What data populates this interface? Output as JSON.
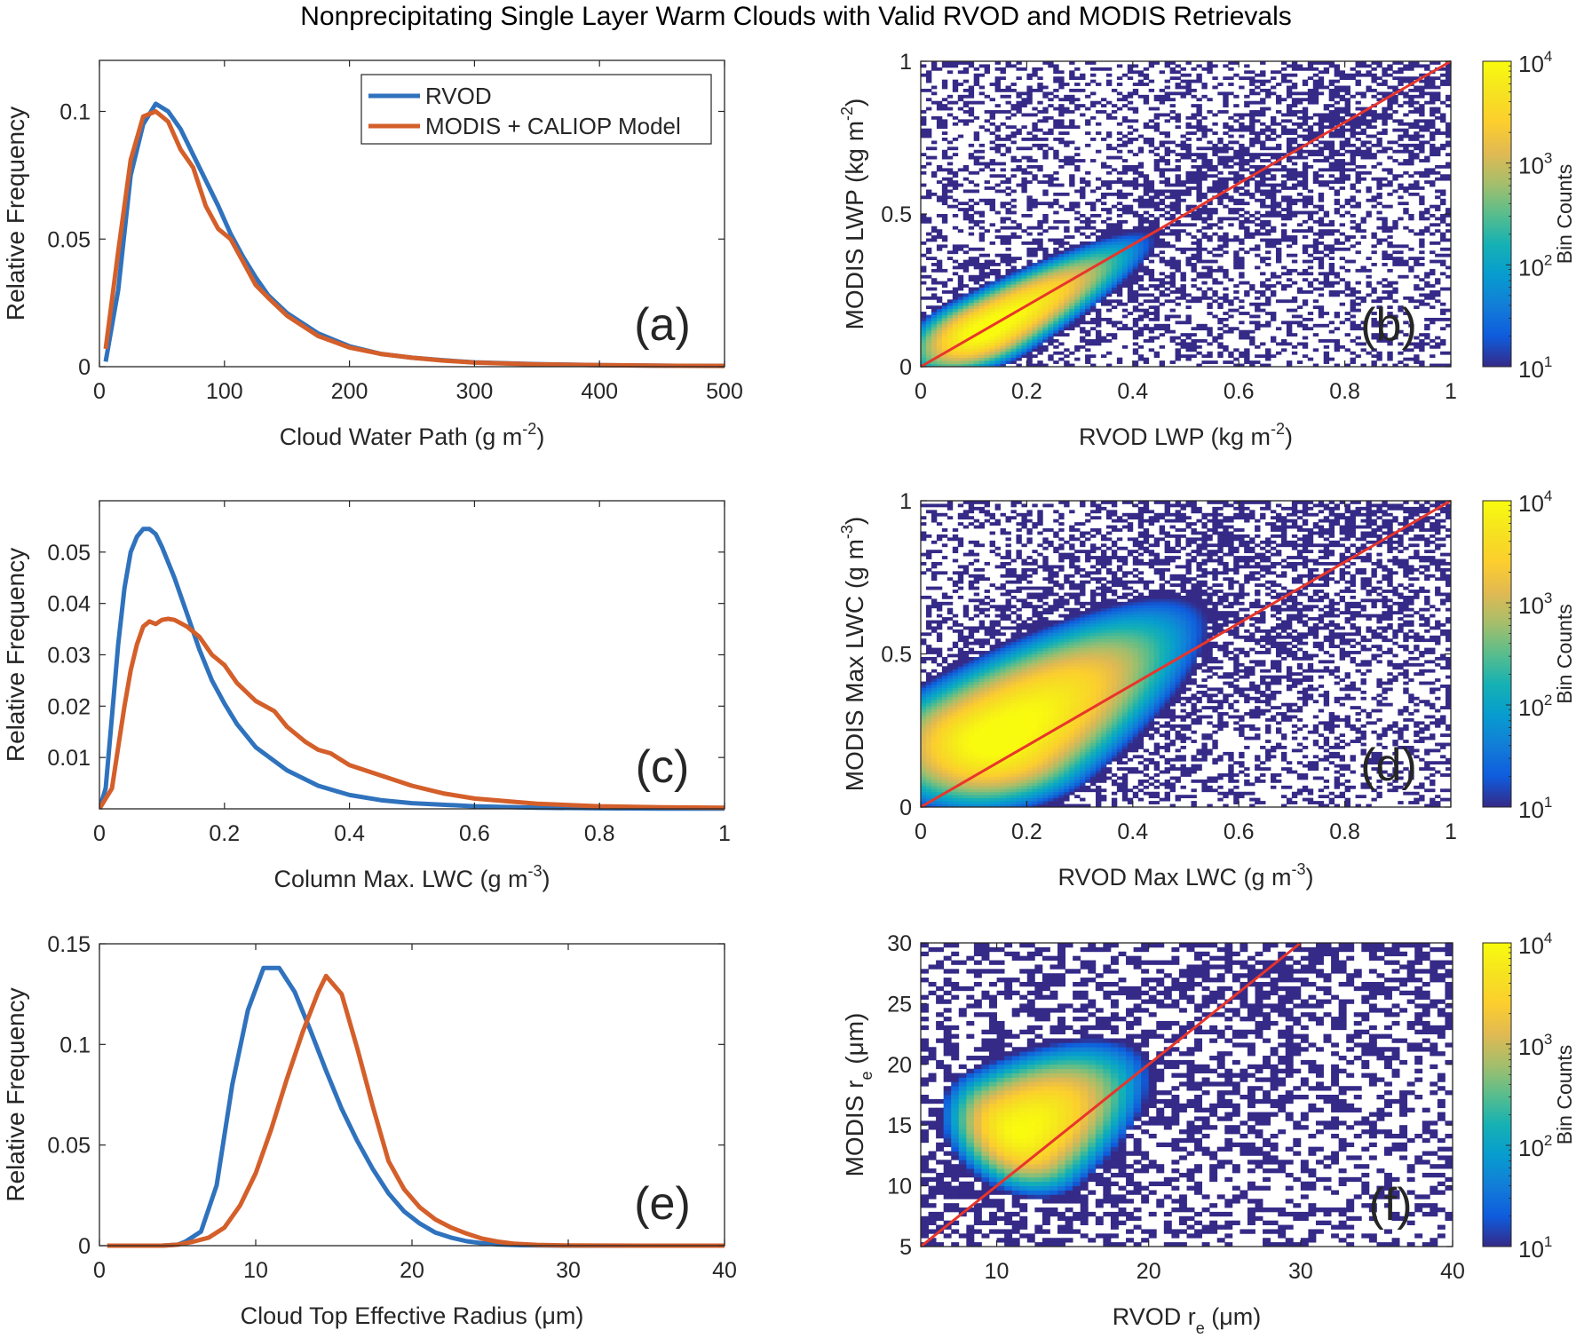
{
  "figure_title": "Nonprecipitating Single Layer Warm Clouds with Valid RVOD and MODIS Retrievals",
  "colors": {
    "rvod": "#2f72bd",
    "modis": "#d45f2a",
    "one_to_one": "#e8352b",
    "panel_label": "#6a329f",
    "axis": "#262626"
  },
  "colorbar": {
    "label": "Bin Counts",
    "scale": "log",
    "range": [
      10,
      10000
    ],
    "ticks": [
      "10^1",
      "10^2",
      "10^3",
      "10^4"
    ],
    "colormap": "parula"
  },
  "chart_data": [
    {
      "id": "a",
      "type": "line",
      "panel_label": "(a)",
      "title": "",
      "xlabel": "Cloud Water Path (g m^-2)",
      "xlabel_main": "Cloud Water Path (g m",
      "xlabel_sup": "-2",
      "xlabel_tail": ")",
      "ylabel": "Relative Frequency",
      "xlim": [
        0,
        500
      ],
      "ylim": [
        0,
        0.12
      ],
      "xticks": [
        0,
        100,
        200,
        300,
        400,
        500
      ],
      "xtick_labels": [
        "0",
        "100",
        "200",
        "300",
        "400",
        "500"
      ],
      "yticks": [
        0,
        0.05,
        0.1
      ],
      "ytick_labels": [
        "0",
        "0.05",
        "0.1"
      ],
      "legend": {
        "position": "top-right",
        "entries": [
          "RVOD",
          "MODIS + CALIOP Model"
        ]
      },
      "series": [
        {
          "name": "RVOD",
          "x": [
            5,
            15,
            25,
            35,
            45,
            55,
            65,
            75,
            85,
            95,
            105,
            115,
            125,
            135,
            150,
            175,
            200,
            225,
            250,
            275,
            300,
            350,
            400,
            450,
            500
          ],
          "y": [
            0.002,
            0.03,
            0.075,
            0.095,
            0.103,
            0.1,
            0.093,
            0.083,
            0.073,
            0.063,
            0.052,
            0.043,
            0.035,
            0.028,
            0.021,
            0.013,
            0.008,
            0.005,
            0.0035,
            0.0025,
            0.0017,
            0.001,
            0.0006,
            0.0004,
            0.0003
          ]
        },
        {
          "name": "MODIS + CALIOP Model",
          "x": [
            5,
            15,
            25,
            35,
            45,
            55,
            65,
            75,
            85,
            95,
            105,
            115,
            125,
            135,
            150,
            175,
            200,
            225,
            250,
            275,
            300,
            350,
            400,
            450,
            500
          ],
          "y": [
            0.007,
            0.045,
            0.081,
            0.098,
            0.1,
            0.096,
            0.085,
            0.078,
            0.063,
            0.054,
            0.05,
            0.041,
            0.032,
            0.027,
            0.02,
            0.012,
            0.0075,
            0.005,
            0.0035,
            0.0024,
            0.0016,
            0.0009,
            0.0006,
            0.0004,
            0.0003
          ]
        }
      ]
    },
    {
      "id": "b",
      "type": "heatmap",
      "panel_label": "(b)",
      "xlabel": "RVOD LWP (kg m^-2)",
      "xlabel_main": "RVOD LWP (kg m",
      "xlabel_sup": "-2",
      "xlabel_tail": ")",
      "ylabel": "MODIS LWP (kg m^-2)",
      "ylabel_main": "MODIS LWP (kg m",
      "ylabel_sup": "-2",
      "ylabel_tail": ")",
      "xlim": [
        0,
        1
      ],
      "ylim": [
        0,
        1
      ],
      "xticks": [
        0,
        0.2,
        0.4,
        0.6,
        0.8,
        1
      ],
      "xtick_labels": [
        "0",
        "0.2",
        "0.4",
        "0.6",
        "0.8",
        "1"
      ],
      "yticks": [
        0,
        0.5,
        1
      ],
      "ytick_labels": [
        "0",
        "0.5",
        "1"
      ],
      "one_to_one_line": true,
      "density": {
        "peak_x": 0.12,
        "peak_y": 0.12,
        "log10_peak": 4.1,
        "spread_along": 0.32,
        "spread_across": 0.07,
        "slope": 1.0,
        "bins": 100,
        "sparse_min_log": 1.0
      }
    },
    {
      "id": "c",
      "type": "line",
      "panel_label": "(c)",
      "xlabel": "Column Max. LWC (g m^-3)",
      "xlabel_main": "Column Max. LWC (g m",
      "xlabel_sup": "-3",
      "xlabel_tail": ")",
      "ylabel": "Relative Frequency",
      "xlim": [
        0,
        1
      ],
      "ylim": [
        0,
        0.06
      ],
      "xticks": [
        0,
        0.2,
        0.4,
        0.6,
        0.8,
        1
      ],
      "xtick_labels": [
        "0",
        "0.2",
        "0.4",
        "0.6",
        "0.8",
        "1"
      ],
      "yticks": [
        0.01,
        0.02,
        0.03,
        0.04,
        0.05
      ],
      "ytick_labels": [
        "0.01",
        "0.02",
        "0.03",
        "0.04",
        "0.05"
      ],
      "series": [
        {
          "name": "RVOD",
          "x": [
            0,
            0.01,
            0.02,
            0.03,
            0.04,
            0.05,
            0.06,
            0.07,
            0.08,
            0.09,
            0.1,
            0.12,
            0.14,
            0.16,
            0.18,
            0.2,
            0.22,
            0.25,
            0.3,
            0.35,
            0.4,
            0.45,
            0.5,
            0.6,
            0.7,
            0.8,
            0.9,
            1.0
          ],
          "y": [
            0,
            0.004,
            0.018,
            0.032,
            0.043,
            0.05,
            0.053,
            0.0545,
            0.0545,
            0.0535,
            0.051,
            0.045,
            0.038,
            0.031,
            0.025,
            0.0205,
            0.0165,
            0.012,
            0.0075,
            0.0045,
            0.0027,
            0.0017,
            0.0011,
            0.0005,
            0.0002,
            0.0001,
            5e-05,
            3e-05
          ]
        },
        {
          "name": "MODIS + CALIOP Model",
          "x": [
            0,
            0.01,
            0.02,
            0.03,
            0.04,
            0.05,
            0.06,
            0.07,
            0.08,
            0.09,
            0.1,
            0.11,
            0.12,
            0.14,
            0.16,
            0.18,
            0.2,
            0.22,
            0.25,
            0.28,
            0.3,
            0.33,
            0.35,
            0.37,
            0.4,
            0.45,
            0.5,
            0.55,
            0.6,
            0.7,
            0.8,
            0.9,
            1.0
          ],
          "y": [
            0,
            0.002,
            0.004,
            0.012,
            0.02,
            0.027,
            0.032,
            0.0355,
            0.0365,
            0.036,
            0.0368,
            0.037,
            0.0368,
            0.0355,
            0.0335,
            0.03,
            0.028,
            0.0245,
            0.021,
            0.019,
            0.016,
            0.013,
            0.0115,
            0.0108,
            0.0085,
            0.0065,
            0.0045,
            0.003,
            0.002,
            0.001,
            0.0005,
            0.0003,
            0.0002
          ]
        }
      ]
    },
    {
      "id": "d",
      "type": "heatmap",
      "panel_label": "(d)",
      "xlabel": "RVOD Max LWC (g m^-3)",
      "xlabel_main": "RVOD Max LWC (g m",
      "xlabel_sup": "-3",
      "xlabel_tail": ")",
      "ylabel": "MODIS Max LWC (g m^-3)",
      "ylabel_main": "MODIS Max LWC (g m",
      "ylabel_sup": "-3",
      "ylabel_tail": ")",
      "xlim": [
        0,
        1
      ],
      "ylim": [
        0,
        1
      ],
      "xticks": [
        0,
        0.2,
        0.4,
        0.6,
        0.8,
        1
      ],
      "xtick_labels": [
        "0",
        "0.2",
        "0.4",
        "0.6",
        "0.8",
        "1"
      ],
      "yticks": [
        0,
        0.5,
        1
      ],
      "ytick_labels": [
        "0",
        "0.5",
        "1"
      ],
      "one_to_one_line": true,
      "density": {
        "peak_x": 0.14,
        "peak_y": 0.22,
        "log10_peak": 4.1,
        "spread_along": 0.42,
        "spread_across": 0.14,
        "slope": 1.2,
        "bins": 100,
        "sparse_min_log": 1.0
      }
    },
    {
      "id": "e",
      "type": "line",
      "panel_label": "(e)",
      "xlabel": "Cloud Top Effective Radius (μm)",
      "xlabel_main": "Cloud Top Effective Radius (μm)",
      "xlabel_sup": "",
      "xlabel_tail": "",
      "ylabel": "Relative Frequency",
      "xlim": [
        0,
        40
      ],
      "ylim": [
        0,
        0.15
      ],
      "xticks": [
        0,
        10,
        20,
        30,
        40
      ],
      "xtick_labels": [
        "0",
        "10",
        "20",
        "30",
        "40"
      ],
      "yticks": [
        0,
        0.05,
        0.1,
        0.15
      ],
      "ytick_labels": [
        "0",
        "0.05",
        "0.1",
        "0.15"
      ],
      "series": [
        {
          "name": "RVOD",
          "x": [
            0.5,
            2,
            4,
            5,
            5.5,
            6.5,
            7.5,
            8.5,
            9.5,
            10.5,
            11.5,
            12.5,
            13.5,
            14.5,
            15.5,
            16.5,
            17.5,
            18.5,
            19.5,
            20.5,
            21.5,
            22.5,
            23.5,
            24.5,
            25.5,
            27,
            30,
            35,
            40
          ],
          "y": [
            0,
            0,
            0,
            0.0005,
            0.002,
            0.007,
            0.03,
            0.08,
            0.117,
            0.138,
            0.138,
            0.126,
            0.107,
            0.087,
            0.068,
            0.052,
            0.038,
            0.026,
            0.017,
            0.011,
            0.0065,
            0.004,
            0.0022,
            0.0012,
            0.0006,
            0.0002,
            0,
            0,
            0
          ]
        },
        {
          "name": "MODIS + CALIOP Model",
          "x": [
            0.5,
            2,
            4,
            5,
            6,
            7,
            8,
            9,
            10,
            11,
            12,
            13,
            14,
            14.5,
            15.5,
            16.5,
            17.5,
            18.5,
            19.5,
            20.5,
            21.5,
            22.5,
            23.5,
            24.5,
            25.5,
            26.5,
            28,
            30,
            35,
            40
          ],
          "y": [
            0,
            0,
            0,
            0.0005,
            0.002,
            0.004,
            0.009,
            0.02,
            0.036,
            0.058,
            0.083,
            0.106,
            0.126,
            0.134,
            0.125,
            0.098,
            0.069,
            0.042,
            0.028,
            0.019,
            0.013,
            0.009,
            0.006,
            0.0035,
            0.002,
            0.001,
            0.0004,
            0.0001,
            0,
            0
          ]
        }
      ]
    },
    {
      "id": "f",
      "type": "heatmap",
      "panel_label": "(f)",
      "xlabel": "RVOD r_e (μm)",
      "xlabel_main": "RVOD r",
      "xlabel_sub": "e",
      "xlabel_tail": " (μm)",
      "ylabel": "MODIS r_e (μm)",
      "ylabel_main": "MODIS r",
      "ylabel_sub": "e",
      "ylabel_tail": " (μm)",
      "xlim": [
        5,
        40
      ],
      "ylim": [
        5,
        30
      ],
      "xticks": [
        10,
        20,
        30,
        40
      ],
      "xtick_labels": [
        "10",
        "20",
        "30",
        "40"
      ],
      "yticks": [
        5,
        10,
        15,
        20,
        25,
        30
      ],
      "ytick_labels": [
        "5",
        "10",
        "15",
        "20",
        "25",
        "30"
      ],
      "one_to_one_line": true,
      "density": {
        "peak_x": 11.5,
        "peak_y": 14.5,
        "log10_peak": 4.0,
        "spread_along": 7.5,
        "spread_across": 3.8,
        "slope": 0.8,
        "bins": 70,
        "sparse_min_log": 1.0
      }
    }
  ]
}
